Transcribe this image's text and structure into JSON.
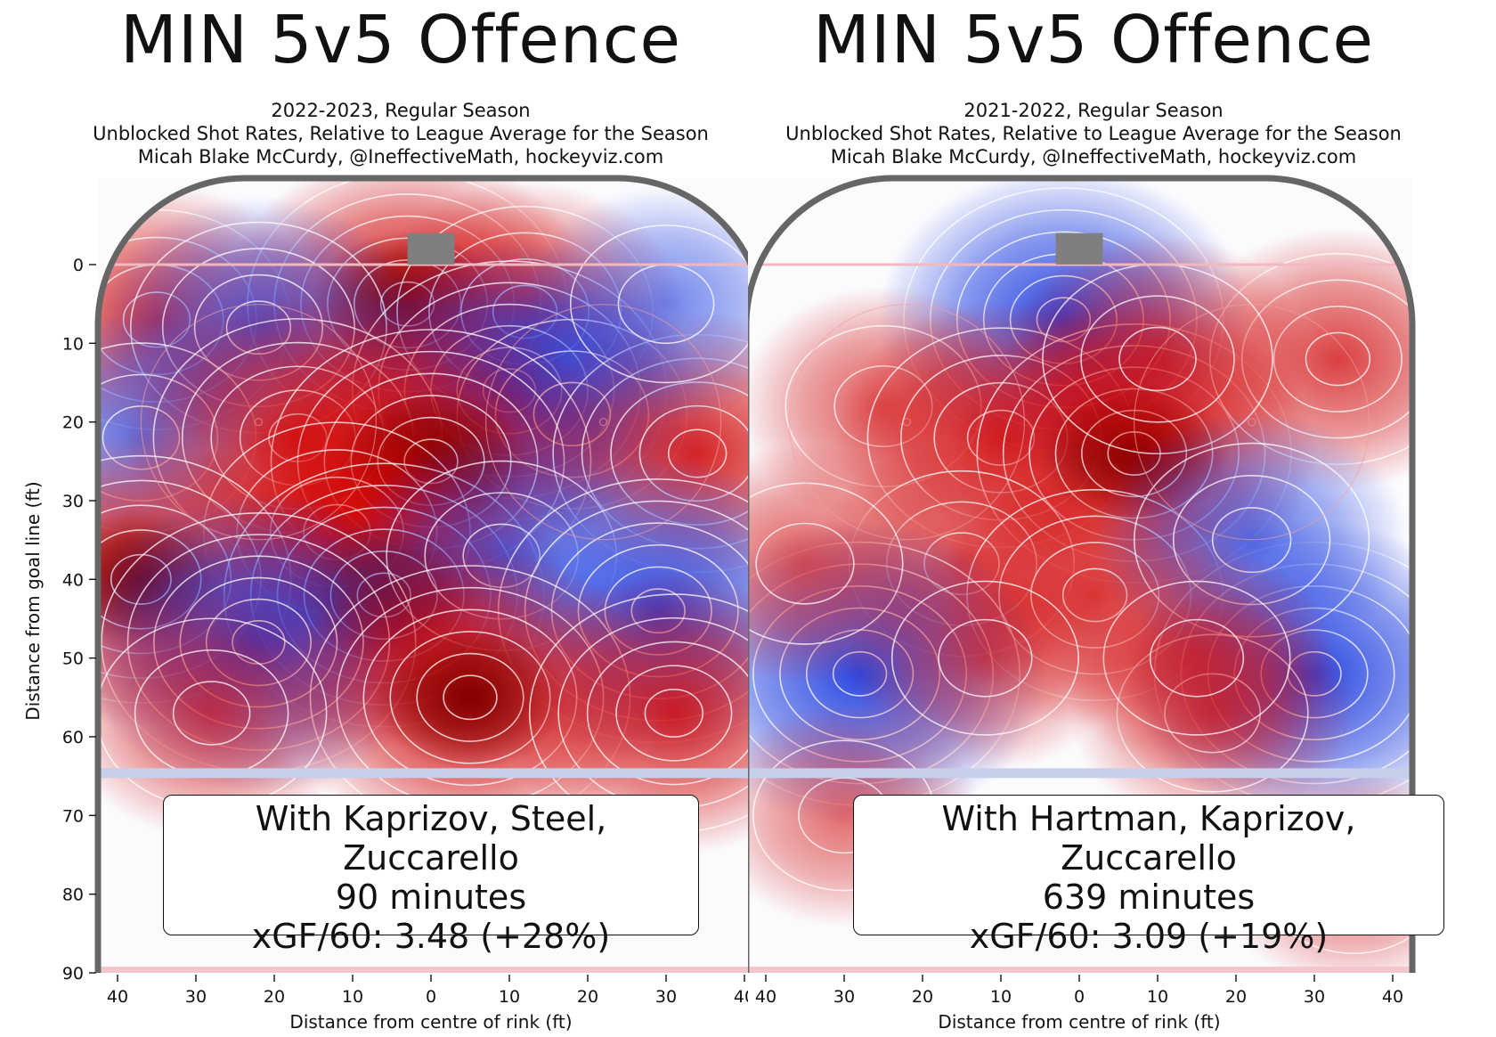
{
  "panels": [
    {
      "title": "MIN 5v5 Offence",
      "season_line": "2022-2023, Regular Season",
      "desc_line": "Unblocked Shot Rates, Relative to League Average for the Season",
      "credit_line": "Micah Blake McCurdy, @IneffectiveMath, hockeyviz.com",
      "box_players": "With Kaprizov, Steel, Zuccarello",
      "box_minutes": "90 minutes",
      "box_xgf": "xGF/60: 3.48 (+28%)"
    },
    {
      "title": "MIN 5v5 Offence",
      "season_line": "2021-2022, Regular Season",
      "desc_line": "Unblocked Shot Rates, Relative to League Average for the Season",
      "credit_line": "Micah Blake McCurdy, @IneffectiveMath, hockeyviz.com",
      "box_players": "With Hartman, Kaprizov, Zuccarello",
      "box_minutes": "639 minutes",
      "box_xgf": "xGF/60: 3.09 (+19%)"
    }
  ],
  "chart_data": [
    {
      "type": "heatmap",
      "title": "MIN 5v5 Offence",
      "xlabel": "Distance from centre of rink (ft)",
      "ylabel": "Distance from goal line (ft)",
      "xlim": [
        42.5,
        -42.5
      ],
      "ylim": [
        90,
        -12
      ],
      "xticks": [
        40,
        30,
        20,
        10,
        0,
        10,
        20,
        30,
        40
      ],
      "yticks": [
        0,
        10,
        20,
        30,
        40,
        50,
        60,
        70,
        80,
        90
      ],
      "colors": {
        "above_average": "#d00000",
        "below_average": "#1f3fe0"
      },
      "hotspots": [
        {
          "x": -35,
          "y": 7,
          "v": 0.7
        },
        {
          "x": -3,
          "y": 5,
          "v": 1.0
        },
        {
          "x": 12,
          "y": 6,
          "v": 0.6
        },
        {
          "x": -22,
          "y": 8,
          "v": -0.6
        },
        {
          "x": 10,
          "y": 16,
          "v": -0.95
        },
        {
          "x": 18,
          "y": 19,
          "v": -0.5
        },
        {
          "x": -37,
          "y": 22,
          "v": -0.5
        },
        {
          "x": -17,
          "y": 22,
          "v": 0.8
        },
        {
          "x": 0,
          "y": 25,
          "v": 1.0
        },
        {
          "x": 34,
          "y": 24,
          "v": 0.8
        },
        {
          "x": -12,
          "y": 34,
          "v": 0.7
        },
        {
          "x": -37,
          "y": 40,
          "v": 0.9
        },
        {
          "x": -6,
          "y": 42,
          "v": 1.0
        },
        {
          "x": 9,
          "y": 37,
          "v": -0.5
        },
        {
          "x": 29,
          "y": 44,
          "v": -1.0
        },
        {
          "x": -22,
          "y": 48,
          "v": -0.95
        },
        {
          "x": 5,
          "y": 55,
          "v": 1.0
        },
        {
          "x": 31,
          "y": 57,
          "v": 0.8
        },
        {
          "x": -28,
          "y": 57,
          "v": 0.5
        },
        {
          "x": 30,
          "y": 5,
          "v": -0.35
        }
      ]
    },
    {
      "type": "heatmap",
      "title": "MIN 5v5 Offence",
      "xlabel": "Distance from centre of rink (ft)",
      "ylabel": "Distance from goal line (ft)",
      "xlim": [
        42.5,
        -42.5
      ],
      "ylim": [
        90,
        -12
      ],
      "xticks": [
        40,
        30,
        20,
        10,
        0,
        10,
        20,
        30,
        40
      ],
      "yticks": [
        0,
        10,
        20,
        30,
        40,
        50,
        60,
        70,
        80,
        90
      ],
      "colors": {
        "above_average": "#d00000",
        "below_average": "#1f3fe0"
      },
      "hotspots": [
        {
          "x": -2,
          "y": 7,
          "v": -1.0
        },
        {
          "x": -25,
          "y": 18,
          "v": 0.4
        },
        {
          "x": -10,
          "y": 22,
          "v": 0.7
        },
        {
          "x": 7,
          "y": 24,
          "v": 0.95
        },
        {
          "x": 33,
          "y": 12,
          "v": 0.6
        },
        {
          "x": 10,
          "y": 12,
          "v": 0.5
        },
        {
          "x": -15,
          "y": 38,
          "v": 0.45
        },
        {
          "x": 2,
          "y": 42,
          "v": 0.6
        },
        {
          "x": -28,
          "y": 52,
          "v": -1.0
        },
        {
          "x": 30,
          "y": 52,
          "v": -1.0
        },
        {
          "x": 22,
          "y": 35,
          "v": -0.55
        },
        {
          "x": -35,
          "y": 38,
          "v": 0.4
        },
        {
          "x": 17,
          "y": 57,
          "v": 0.35
        },
        {
          "x": 15,
          "y": 50,
          "v": 0.3
        },
        {
          "x": -30,
          "y": 70,
          "v": 0.25
        },
        {
          "x": 35,
          "y": 78,
          "v": 0.25
        },
        {
          "x": -12,
          "y": 50,
          "v": 0.3
        }
      ]
    }
  ]
}
